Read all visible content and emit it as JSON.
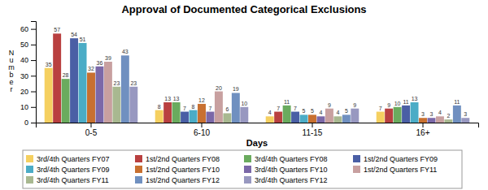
{
  "chart_data": {
    "type": "bar",
    "title": "Approval of Documented Categorical Exclusions",
    "xlabel": "Days",
    "ylabel": "N\nu\nm\nb\ne\nr",
    "categories": [
      "0-5",
      "6-10",
      "11-15",
      "16+"
    ],
    "series": [
      {
        "name": "3rd/4th Quarters FY07",
        "color": "#F5D060",
        "values": [
          35,
          8,
          4,
          7
        ]
      },
      {
        "name": "1st/2nd Quarters FY08",
        "color": "#B94040",
        "values": [
          57,
          13,
          7,
          9
        ]
      },
      {
        "name": "3rd/4th Quarters FY08",
        "color": "#6AAB5E",
        "values": [
          28,
          13,
          11,
          10
        ]
      },
      {
        "name": "1st/2nd Quarters FY09",
        "color": "#4A5FA5",
        "values": [
          54,
          7,
          7,
          11
        ]
      },
      {
        "name": "3rd/4th Quarters FY09",
        "color": "#4BACC6",
        "values": [
          51,
          8,
          5,
          13
        ]
      },
      {
        "name": "1st/2nd Quarters FY10",
        "color": "#C87030",
        "values": [
          32,
          12,
          5,
          3
        ]
      },
      {
        "name": "3rd/4th Quarters FY10",
        "color": "#7B68A8",
        "values": [
          36,
          7,
          4,
          3
        ]
      },
      {
        "name": "1st/2nd Quarters FY11",
        "color": "#C8A0A0",
        "values": [
          39,
          20,
          9,
          4
        ]
      },
      {
        "name": "3rd/4th Quarters FY11",
        "color": "#A8B890",
        "values": [
          23,
          6,
          4,
          2
        ]
      },
      {
        "name": "1st/2nd Quarters FY12",
        "color": "#7090C0",
        "values": [
          43,
          19,
          5,
          11
        ]
      },
      {
        "name": "3rd/4th Quarters FY12",
        "color": "#9898C0",
        "values": [
          23,
          10,
          9,
          3
        ]
      }
    ],
    "ylim": [
      0,
      65
    ],
    "yticks": [
      0,
      10,
      20,
      30,
      40,
      50,
      60
    ],
    "grid": false,
    "legend": "bottom",
    "data_labels": true
  }
}
